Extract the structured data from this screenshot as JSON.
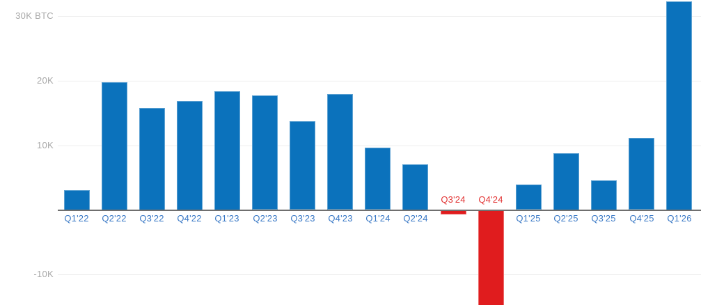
{
  "chart_data": {
    "type": "bar",
    "title": "",
    "unit": "BTC",
    "categories": [
      "Q1'22",
      "Q2'22",
      "Q3'22",
      "Q4'22",
      "Q1'23",
      "Q2'23",
      "Q3'23",
      "Q4'23",
      "Q1'24",
      "Q2'24",
      "Q3'24",
      "Q4'24",
      "Q1'25",
      "Q2'25",
      "Q3'25",
      "Q4'25",
      "Q1'26"
    ],
    "values": [
      3100,
      19800,
      15800,
      16900,
      18400,
      17700,
      13700,
      17900,
      9600,
      7100,
      -700,
      -15000,
      3900,
      8800,
      4600,
      11100,
      32300
    ],
    "y_ticks": [
      {
        "value": 30000,
        "label": "30K BTC"
      },
      {
        "value": 20000,
        "label": "20K"
      },
      {
        "value": 10000,
        "label": "10K"
      },
      {
        "value": -10000,
        "label": "-10K"
      }
    ],
    "xlabel": "",
    "ylabel": "BTC",
    "ylim": [
      -15000,
      33000
    ],
    "grid": true,
    "legend": "none",
    "notes": "Q4'24 bar extends below the visible area (clipped at bottom edge). Negative quarters (Q3'24, Q4'24) are red with labels above the axis; positive quarters are blue with labels below the axis.",
    "colors": {
      "positive_bar": "#0b72bc",
      "negative_bar": "#e01c1e",
      "positive_label": "#3a79c6",
      "negative_label": "#e23333",
      "tick_label": "#a8a8a8",
      "gridline": "#ededed",
      "baseline": "#6f6f6f",
      "background": "#ffffff"
    }
  }
}
